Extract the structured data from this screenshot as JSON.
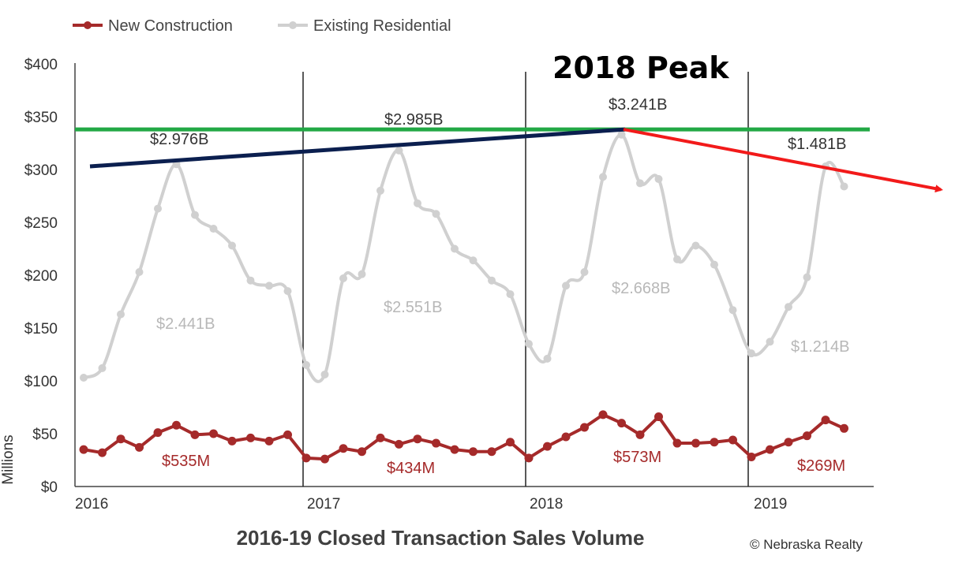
{
  "chart_data": {
    "type": "line",
    "title": "2016-19 Closed Transaction Sales Volume",
    "ylabel": "Millions",
    "xlabel": "",
    "ylim": [
      0,
      400
    ],
    "yticks": [
      "$0",
      "$50",
      "$100",
      "$150",
      "$200",
      "$250",
      "$300",
      "$350",
      "$400"
    ],
    "ytick_values": [
      0,
      50,
      100,
      150,
      200,
      250,
      300,
      350,
      400
    ],
    "years": [
      "2016",
      "2017",
      "2018",
      "2019"
    ],
    "legend_position": "top-left",
    "series": [
      {
        "name": "New Construction",
        "color": "#A52A2A",
        "values": [
          35,
          32,
          45,
          37,
          51,
          58,
          49,
          50,
          43,
          46,
          43,
          49,
          27,
          26,
          36,
          33,
          46,
          40,
          45,
          41,
          35,
          33,
          33,
          42,
          27,
          38,
          47,
          56,
          68,
          60,
          49,
          66,
          41,
          41,
          42,
          44,
          28,
          35,
          42,
          48,
          63,
          55
        ]
      },
      {
        "name": "Existing Residential",
        "color": "#D0D0D0",
        "values": [
          103,
          112,
          163,
          203,
          263,
          305,
          257,
          244,
          228,
          195,
          190,
          185,
          115,
          106,
          197,
          201,
          280,
          318,
          268,
          258,
          225,
          214,
          195,
          182,
          135,
          121,
          190,
          203,
          293,
          333,
          287,
          291,
          215,
          228,
          210,
          167,
          126,
          137,
          170,
          198,
          303,
          284
        ]
      }
    ],
    "annotations": {
      "peak": "2018 Peak",
      "existing_year_labels": [
        "$2.441B",
        "$2.551B",
        "$2.668B",
        "$1.214B"
      ],
      "new_year_labels": [
        "$535M",
        "$434M",
        "$573M",
        "$269M"
      ],
      "total_labels": [
        "$2.976B",
        "$2.985B",
        "$3.241B",
        "$1.481B"
      ]
    },
    "reference_lines": {
      "peak_level": 338,
      "trend_start": 303,
      "trend_peak": 338,
      "decline_end": 281
    },
    "colors": {
      "green": "#22A845",
      "navy": "#0B1F4F",
      "red": "#F21A1A",
      "axis": "#222222"
    }
  },
  "copyright": "© Nebraska Realty"
}
